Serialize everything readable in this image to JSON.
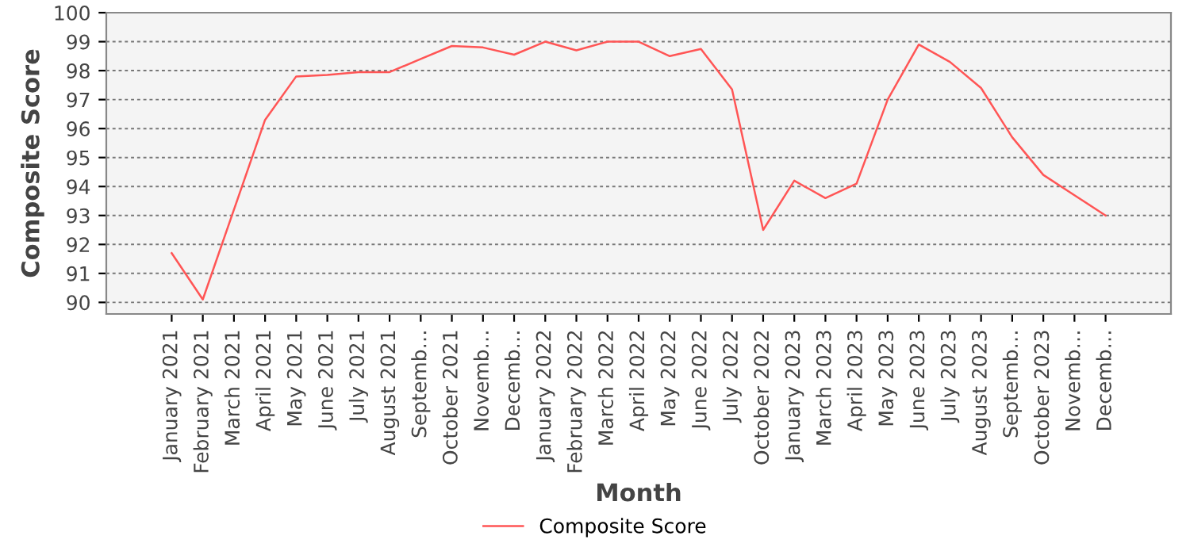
{
  "chart_data": {
    "type": "line",
    "xlabel": "Month",
    "ylabel": "Composite Score",
    "categories": [
      "January 2021",
      "February 2021",
      "March 2021",
      "April 2021",
      "May 2021",
      "June 2021",
      "July 2021",
      "August 2021",
      "Septemb…",
      "October 2021",
      "Novemb…",
      "Decemb…",
      "January 2022",
      "February 2022",
      "March 2022",
      "April 2022",
      "May 2022",
      "June 2022",
      "July 2022",
      "October 2022",
      "January 2023",
      "March 2023",
      "April 2023",
      "May 2023",
      "June 2023",
      "July 2023",
      "August 2023",
      "Septemb…",
      "October 2023",
      "Novemb…",
      "Decemb…"
    ],
    "series": [
      {
        "name": "Composite Score",
        "color": "#ff5555",
        "values": [
          91.7,
          90.1,
          93.2,
          96.3,
          97.8,
          97.85,
          97.95,
          97.95,
          98.4,
          98.85,
          98.8,
          98.55,
          99.0,
          98.7,
          99.0,
          99.0,
          98.5,
          98.75,
          97.35,
          92.5,
          94.2,
          93.6,
          94.1,
          97.0,
          98.9,
          98.3,
          97.4,
          95.7,
          94.4,
          93.7,
          93.0
        ]
      }
    ],
    "ylim": [
      89.6,
      100
    ],
    "yticks": [
      90,
      91,
      92,
      93,
      94,
      95,
      96,
      97,
      98,
      99,
      100
    ],
    "grid": "y",
    "legend": "bottom",
    "marker": "none",
    "line_style": "solid"
  }
}
